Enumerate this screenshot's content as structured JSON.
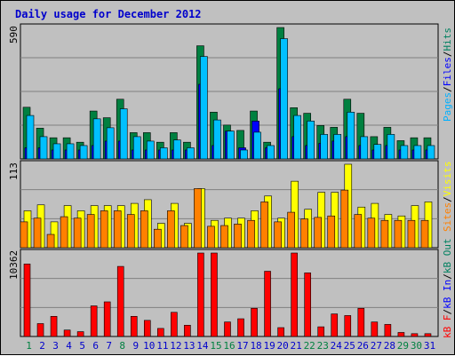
{
  "title": "Daily usage for December 2012",
  "colors": {
    "hits": "#008040",
    "files": "#0000ff",
    "pages": "#00c0ff",
    "visits": "#ffff00",
    "sites": "#ff8000",
    "kbf": "#ff0000",
    "background": "#c0c0c0"
  },
  "axis": {
    "top_max": "590",
    "mid_max": "113",
    "bottom_max": "10362"
  },
  "legend_top": {
    "pages": "Pages",
    "files": "Files",
    "hits": "Hits",
    "sep": "/"
  },
  "legend_mid": {
    "visits": "Visits",
    "sites": "Sites",
    "sep": "/"
  },
  "legend_bottom": {
    "kbf": "kB F",
    "kbin": "kB In",
    "kbout": "kB Out",
    "sep": "/"
  },
  "chart_data": {
    "type": "bar",
    "categories": [
      "1",
      "2",
      "3",
      "4",
      "5",
      "6",
      "7",
      "8",
      "9",
      "10",
      "11",
      "12",
      "13",
      "14",
      "15",
      "16",
      "17",
      "18",
      "19",
      "20",
      "21",
      "22",
      "23",
      "24",
      "25",
      "26",
      "27",
      "28",
      "29",
      "30",
      "31"
    ],
    "weekend_days": [
      "1",
      "8",
      "15",
      "16",
      "22",
      "23",
      "29",
      "30"
    ],
    "panels": [
      {
        "name": "top",
        "ymax": 590,
        "series": [
          {
            "name": "Hits",
            "values": [
              232,
              138,
              95,
              95,
              75,
              215,
              185,
              268,
              118,
              118,
              75,
              118,
              75,
              508,
              210,
              152,
              128,
              215,
              75,
              590,
              230,
              205,
              150,
              142,
              268,
              205,
              100,
              142,
              82,
              95,
              95
            ]
          },
          {
            "name": "Files",
            "values": [
              50,
              50,
              40,
              40,
              40,
              60,
              80,
              80,
              40,
              40,
              40,
              40,
              40,
              335,
              60,
              125,
              50,
              170,
              50,
              315,
              100,
              60,
              70,
              80,
              100,
              60,
              40,
              60,
              40,
              40,
              40
            ]
          },
          {
            "name": "Pages",
            "values": [
              195,
              100,
              68,
              68,
              60,
              180,
              140,
              225,
              100,
              80,
              50,
              85,
              50,
              460,
              175,
              125,
              40,
              120,
              60,
              540,
              195,
              170,
              110,
              110,
              210,
              100,
              65,
              110,
              60,
              60,
              60
            ]
          }
        ]
      },
      {
        "name": "mid",
        "ymax": 113,
        "series": [
          {
            "name": "Visits",
            "values": [
              50,
              58,
              35,
              57,
              50,
              57,
              57,
              57,
              60,
              65,
              33,
              60,
              33,
              80,
              37,
              40,
              40,
              50,
              70,
              40,
              90,
              52,
              75,
              75,
              113,
              55,
              60,
              45,
              43,
              57,
              62
            ]
          },
          {
            "name": "Sites",
            "values": [
              35,
              40,
              18,
              42,
              40,
              45,
              50,
              50,
              45,
              50,
              25,
              50,
              30,
              80,
              29,
              30,
              32,
              37,
              62,
              35,
              48,
              39,
              41,
              43,
              78,
              45,
              40,
              37,
              37,
              37,
              37
            ]
          }
        ]
      },
      {
        "name": "bottom",
        "ymax": 10362,
        "series": [
          {
            "name": "kB F",
            "values": [
              9000,
              1600,
              2500,
              800,
              600,
              3800,
              4300,
              8700,
              2500,
              2000,
              1000,
              3000,
              1400,
              10362,
              10362,
              1800,
              2200,
              3500,
              8100,
              1100,
              10362,
              7900,
              1200,
              2800,
              2600,
              3500,
              1800,
              1500,
              500,
              350,
              350
            ]
          }
        ]
      }
    ]
  }
}
